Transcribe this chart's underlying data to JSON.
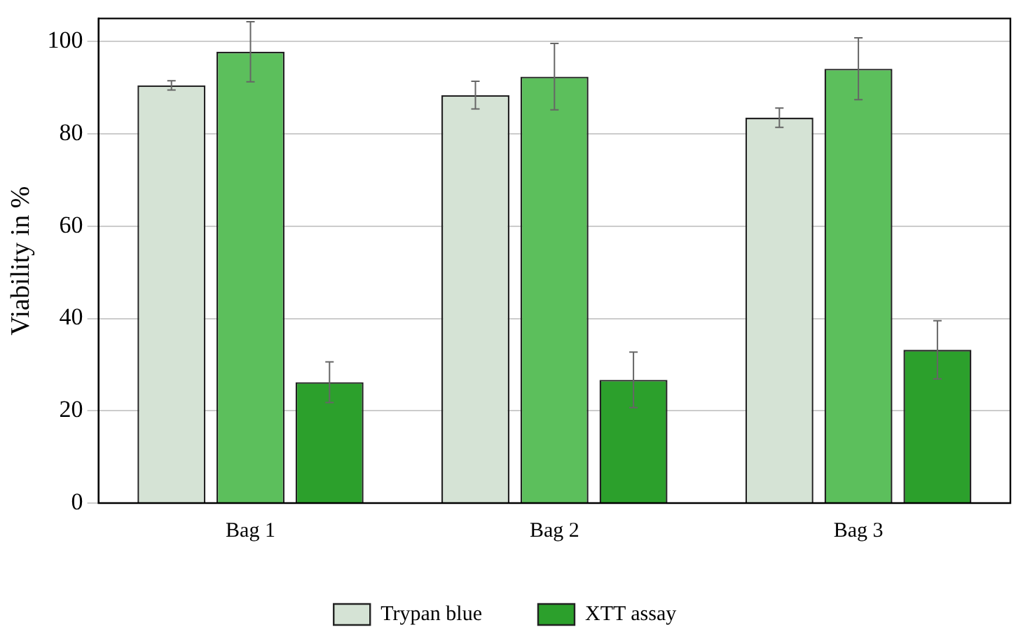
{
  "chart_data": {
    "type": "bar",
    "ylabel": "Viability in %",
    "categories": [
      "Bag 1",
      "Bag 2",
      "Bag 3"
    ],
    "series": [
      {
        "name": "Trypan blue",
        "color": "#d5e3d5",
        "values": [
          90.5,
          88.4,
          83.5
        ],
        "errors": [
          1,
          3,
          2.1
        ]
      },
      {
        "color": "#5cbf5c",
        "values": [
          97.8,
          92.4,
          94.1
        ],
        "errors": [
          6.5,
          7.2,
          6.7
        ]
      },
      {
        "name": "XTT assay",
        "color": "#2ca02c",
        "values": [
          26.2,
          26.7,
          33.2
        ],
        "errors": [
          4.4,
          6,
          6.3
        ]
      }
    ],
    "ylim": [
      0,
      105
    ],
    "yticks": [
      0,
      20,
      40,
      60,
      80,
      100
    ],
    "grid": "y",
    "legend": "bottom"
  }
}
